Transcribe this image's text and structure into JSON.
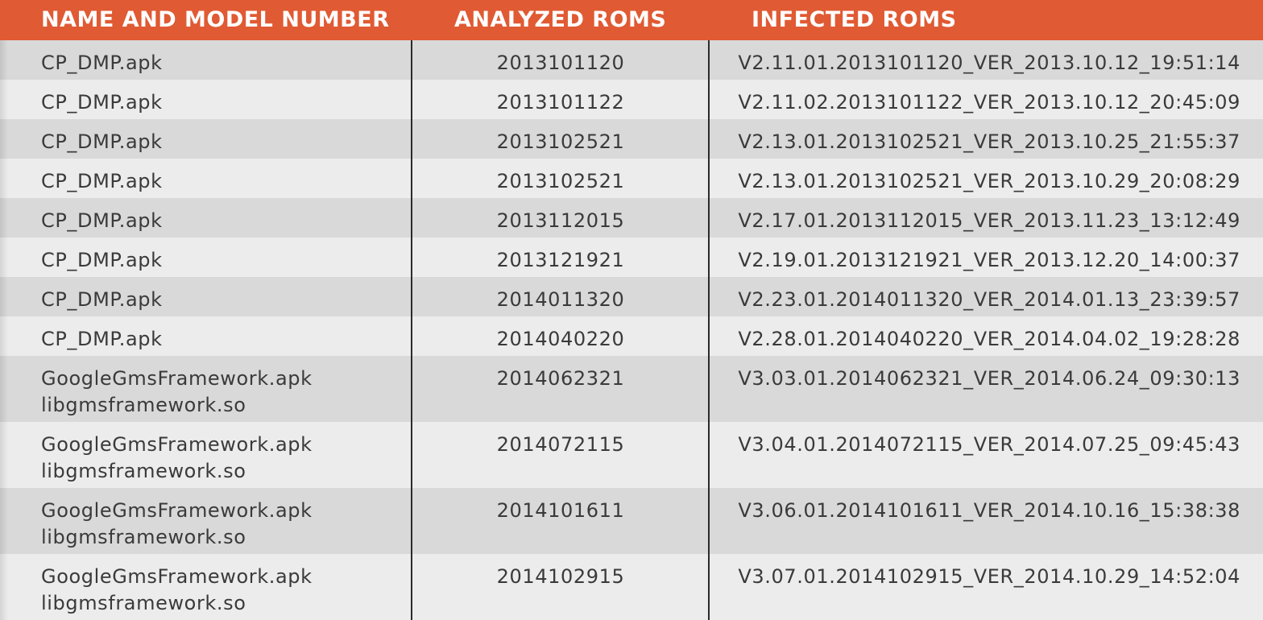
{
  "table": {
    "headers": {
      "name": "NAME AND MODEL NUMBER",
      "analyzed": "ANALYZED ROMS",
      "infected": "INFECTED ROMS"
    },
    "rows": [
      {
        "name": [
          "CP_DMP.apk"
        ],
        "analyzed": "2013101120",
        "infected": "V2.11.01.2013101120_VER_2013.10.12_19:51:14"
      },
      {
        "name": [
          "CP_DMP.apk"
        ],
        "analyzed": "2013101122",
        "infected": "V2.11.02.2013101122_VER_2013.10.12_20:45:09"
      },
      {
        "name": [
          "CP_DMP.apk"
        ],
        "analyzed": "2013102521",
        "infected": "V2.13.01.2013102521_VER_2013.10.25_21:55:37"
      },
      {
        "name": [
          "CP_DMP.apk"
        ],
        "analyzed": "2013102521",
        "infected": "V2.13.01.2013102521_VER_2013.10.29_20:08:29"
      },
      {
        "name": [
          "CP_DMP.apk"
        ],
        "analyzed": "2013112015",
        "infected": "V2.17.01.2013112015_VER_2013.11.23_13:12:49"
      },
      {
        "name": [
          "CP_DMP.apk"
        ],
        "analyzed": "2013121921",
        "infected": "V2.19.01.2013121921_VER_2013.12.20_14:00:37"
      },
      {
        "name": [
          "CP_DMP.apk"
        ],
        "analyzed": "2014011320",
        "infected": "V2.23.01.2014011320_VER_2014.01.13_23:39:57"
      },
      {
        "name": [
          "CP_DMP.apk"
        ],
        "analyzed": "2014040220",
        "infected": "V2.28.01.2014040220_VER_2014.04.02_19:28:28"
      },
      {
        "name": [
          "GoogleGmsFramework.apk",
          "libgmsframework.so"
        ],
        "analyzed": "2014062321",
        "infected": "V3.03.01.2014062321_VER_2014.06.24_09:30:13"
      },
      {
        "name": [
          "GoogleGmsFramework.apk",
          "libgmsframework.so"
        ],
        "analyzed": "2014072115",
        "infected": "V3.04.01.2014072115_VER_2014.07.25_09:45:43"
      },
      {
        "name": [
          "GoogleGmsFramework.apk",
          "libgmsframework.so"
        ],
        "analyzed": "2014101611",
        "infected": "V3.06.01.2014101611_VER_2014.10.16_15:38:38"
      },
      {
        "name": [
          "GoogleGmsFramework.apk",
          "libgmsframework.so"
        ],
        "analyzed": "2014102915",
        "infected": "V3.07.01.2014102915_VER_2014.10.29_14:52:04"
      }
    ]
  },
  "colors": {
    "header_bg": "#e05a33",
    "header_text": "#ffffff",
    "row_odd": "#d9d9d9",
    "row_even": "#ececec",
    "divider": "#2b2b2b",
    "text": "#3a3a3a"
  }
}
